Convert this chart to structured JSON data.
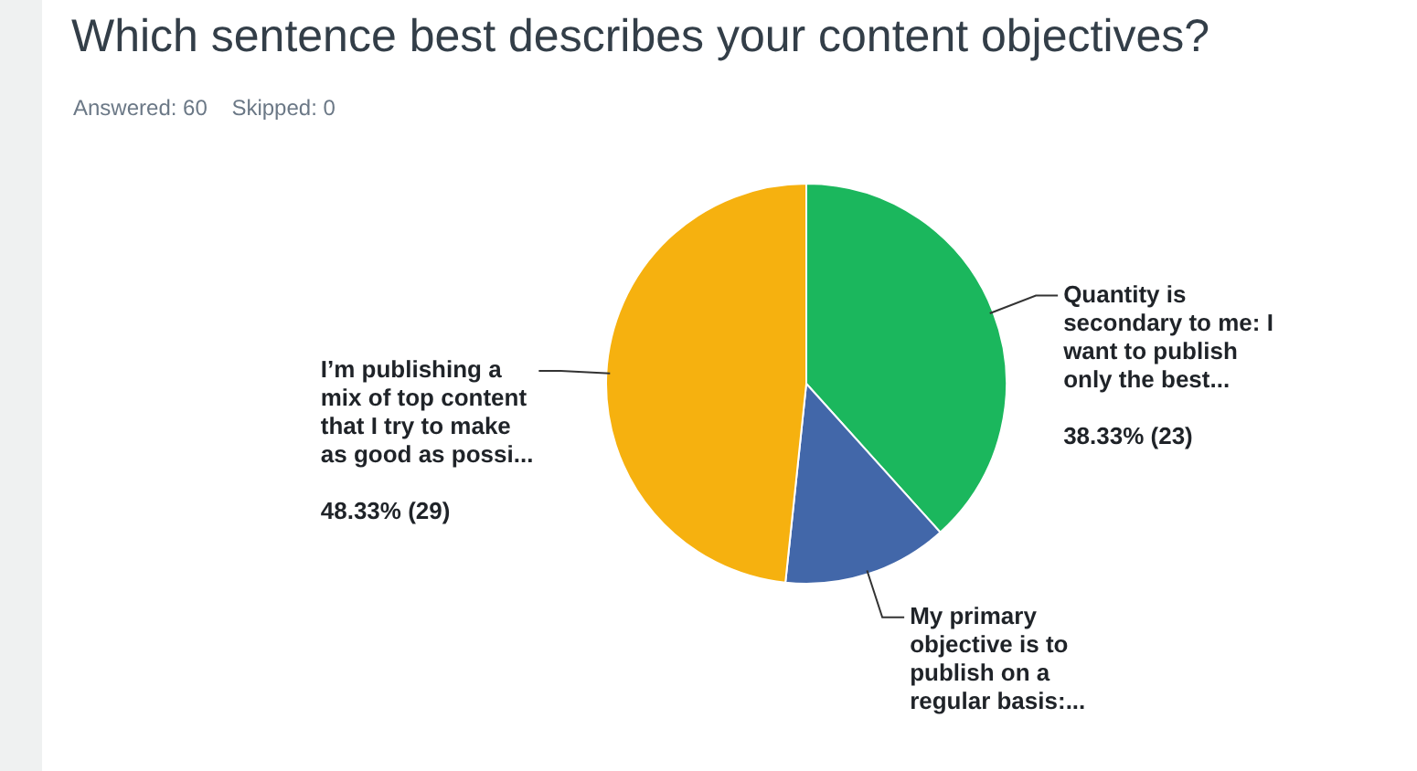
{
  "chart_data": {
    "type": "pie",
    "title": "Which sentence best describes your content objectives?",
    "subtitle": "Answered: 60    Skipped: 0",
    "categories": [
      "Quantity is secondary to me: I want to publish only the best...",
      "My primary objective is to publish on a regular basis:...",
      "I’m publishing a mix of top content that I try to make as good as possi..."
    ],
    "values": [
      23,
      8,
      29
    ],
    "colors": [
      "#1bb75d",
      "#4267a9",
      "#f6b10f"
    ],
    "value_labels": [
      "38.33% (23)",
      null,
      "48.33% (29)"
    ],
    "legend": false
  }
}
